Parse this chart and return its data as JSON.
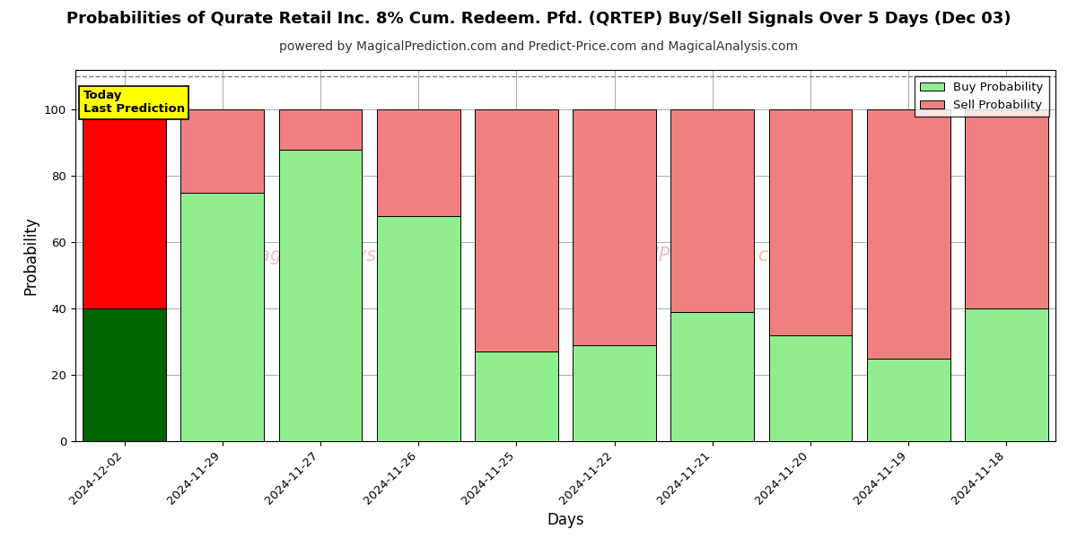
{
  "title": "Probabilities of Qurate Retail Inc. 8% Cum. Redeem. Pfd. (QRTEP) Buy/Sell Signals Over 5 Days (Dec 03)",
  "subtitle": "powered by MagicalPrediction.com and Predict-Price.com and MagicalAnalysis.com",
  "xlabel": "Days",
  "ylabel": "Probability",
  "dates": [
    "2024-12-02",
    "2024-11-29",
    "2024-11-27",
    "2024-11-26",
    "2024-11-25",
    "2024-11-22",
    "2024-11-21",
    "2024-11-20",
    "2024-11-19",
    "2024-11-18"
  ],
  "buy_probs": [
    40,
    75,
    88,
    68,
    27,
    29,
    39,
    32,
    25,
    40
  ],
  "sell_probs": [
    60,
    25,
    12,
    32,
    73,
    71,
    61,
    68,
    75,
    60
  ],
  "buy_color_special": "#006400",
  "buy_color_normal": "#90EE90",
  "sell_color_first": "#FF0000",
  "sell_color_normal": "#F08080",
  "bar_edge_color": "#000000",
  "bar_width": 0.85,
  "ylim": [
    0,
    112
  ],
  "yticks": [
    0,
    20,
    40,
    60,
    80,
    100
  ],
  "dashed_line_y": 110,
  "legend_buy_color": "#90EE90",
  "legend_sell_color": "#F08080",
  "annotation_box_color": "#FFFF00",
  "annotation_text": "Today\nLast Prediction",
  "background_color": "#FFFFFF",
  "grid_color": "#AAAAAA",
  "title_fontsize": 13,
  "subtitle_fontsize": 10,
  "label_fontsize": 12,
  "tick_fontsize": 9.5
}
